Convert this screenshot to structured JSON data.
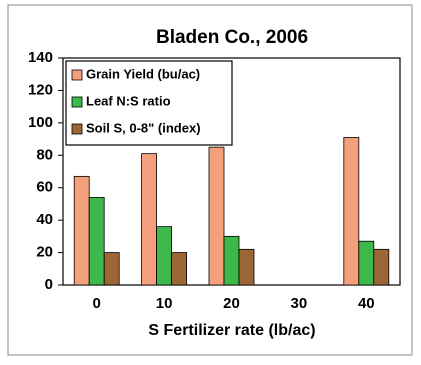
{
  "chart_data": {
    "type": "bar",
    "title": "Bladen Co., 2006",
    "x_label": "S Fertilizer rate (lb/ac)",
    "categories": [
      "0",
      "10",
      "20",
      "30",
      "40"
    ],
    "series": [
      {
        "name": "Grain Yield (bu/ac)",
        "color": "#f5a07c",
        "values": [
          67,
          81,
          85,
          null,
          91
        ]
      },
      {
        "name": "Leaf N:S ratio",
        "color": "#3db84b",
        "values": [
          54,
          36,
          30,
          null,
          27
        ]
      },
      {
        "name": "Soil S, 0-8\" (index)",
        "color": "#9c6636",
        "values": [
          20,
          20,
          22,
          null,
          22
        ]
      }
    ],
    "ylim": [
      0,
      140
    ],
    "yticks": [
      0,
      20,
      40,
      60,
      80,
      100,
      120,
      140
    ],
    "grid": false,
    "legend": "upper left"
  }
}
